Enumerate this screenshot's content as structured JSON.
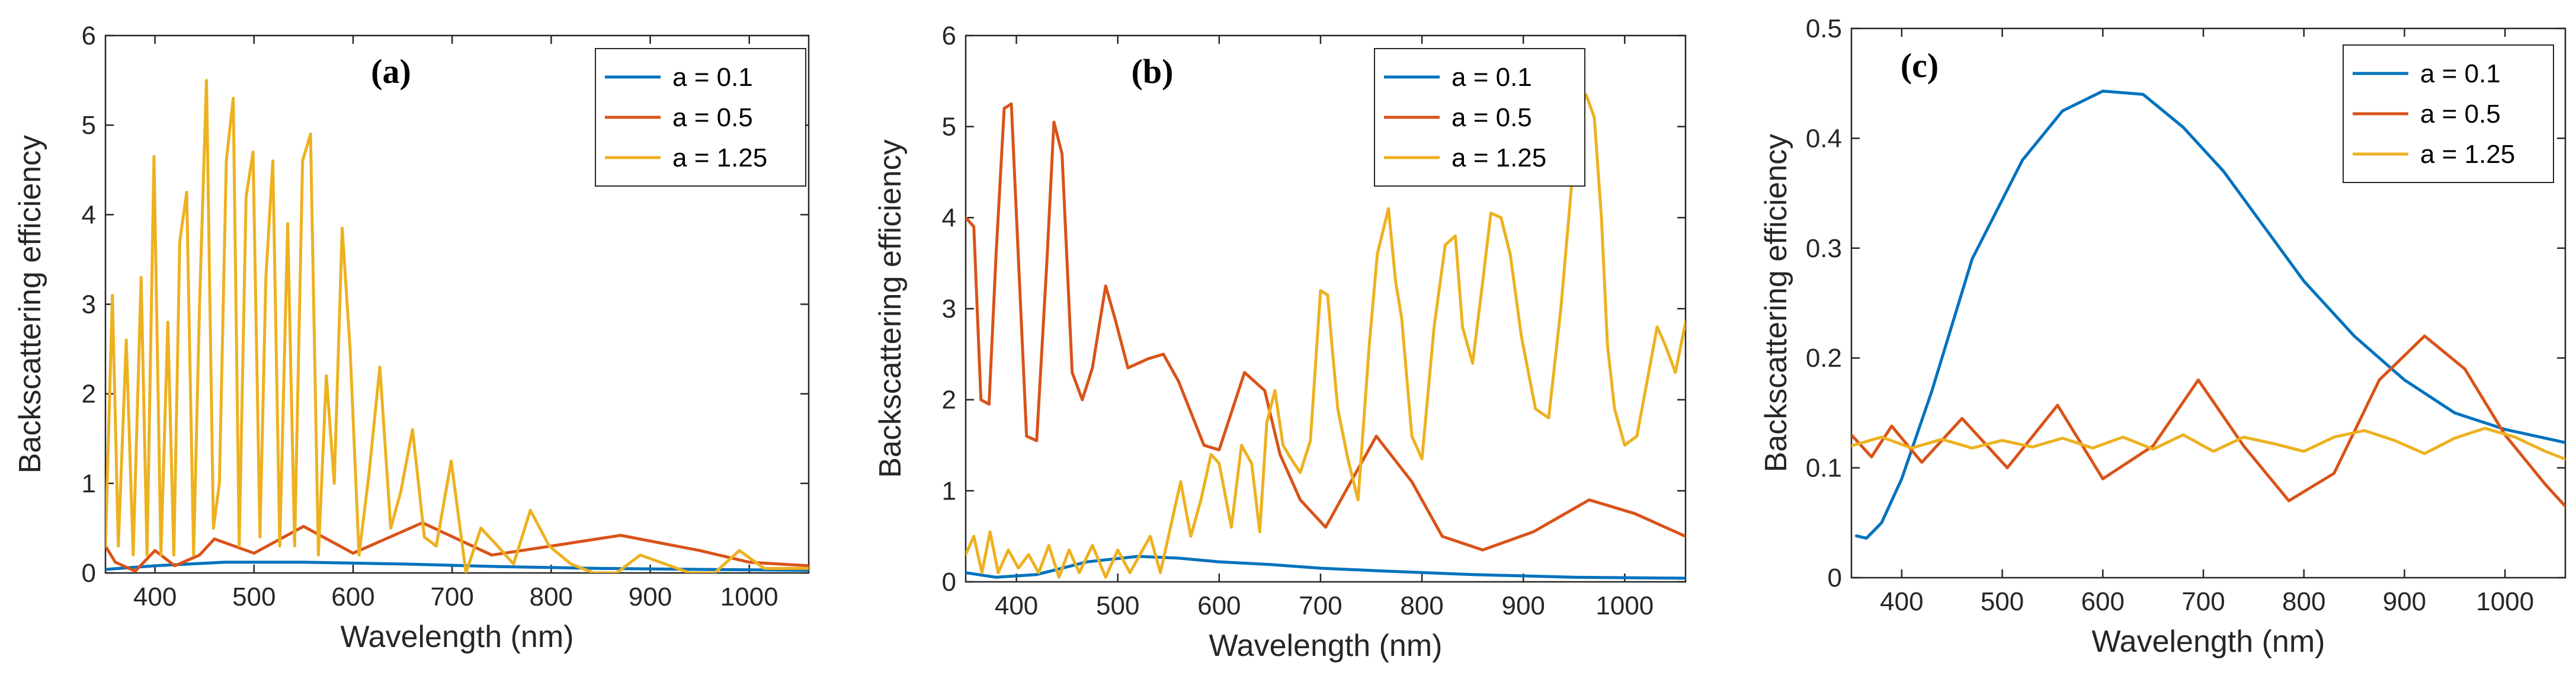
{
  "colors": {
    "a01": "#0072BD",
    "a05": "#D95319",
    "a125": "#EDB120"
  },
  "chart_data": [
    {
      "type": "line",
      "panel": "(a)",
      "xlabel": "Wavelength (nm)",
      "ylabel": "Backscattering efficiency",
      "xlim": [
        350,
        1060
      ],
      "ylim": [
        0,
        6
      ],
      "xticks": [
        400,
        500,
        600,
        700,
        800,
        900,
        1000
      ],
      "yticks": [
        0,
        1,
        2,
        3,
        4,
        5,
        6
      ],
      "legend_position": "top-right",
      "series": [
        {
          "name": "a = 0.1",
          "color_key": "a01",
          "x": [
            350,
            400,
            470,
            550,
            650,
            750,
            850,
            950,
            1060
          ],
          "y": [
            0.04,
            0.08,
            0.12,
            0.12,
            0.1,
            0.07,
            0.05,
            0.04,
            0.03
          ]
        },
        {
          "name": "a = 0.5",
          "color_key": "a05",
          "x": [
            350,
            360,
            380,
            400,
            420,
            445,
            460,
            500,
            550,
            600,
            670,
            740,
            800,
            870,
            950,
            1000,
            1060
          ],
          "y": [
            0.3,
            0.12,
            0.02,
            0.25,
            0.08,
            0.2,
            0.38,
            0.22,
            0.52,
            0.22,
            0.56,
            0.2,
            0.3,
            0.42,
            0.25,
            0.12,
            0.08
          ]
        },
        {
          "name": "a = 1.25",
          "color_key": "a125",
          "x": [
            350,
            357,
            363,
            371,
            378,
            386,
            392,
            399,
            406,
            413,
            419,
            425,
            432,
            439,
            445,
            452,
            459,
            465,
            472,
            479,
            485,
            492,
            499,
            506,
            512,
            519,
            526,
            534,
            541,
            549,
            557,
            565,
            573,
            581,
            589,
            597,
            606,
            616,
            627,
            638,
            648,
            660,
            672,
            684,
            699,
            714,
            729,
            746,
            762,
            779,
            798,
            820,
            843,
            866,
            890,
            915,
            940,
            965,
            990,
            1015,
            1040,
            1060
          ],
          "y": [
            0.3,
            3.1,
            0.3,
            2.6,
            0.2,
            3.3,
            0.2,
            4.65,
            0.2,
            2.8,
            0.2,
            3.7,
            4.25,
            0.2,
            3.0,
            5.5,
            0.5,
            1.0,
            4.6,
            5.3,
            0.3,
            4.2,
            4.7,
            0.4,
            3.3,
            4.6,
            0.3,
            3.9,
            0.3,
            4.6,
            4.9,
            0.2,
            2.2,
            1.0,
            3.85,
            2.5,
            0.2,
            1.1,
            2.3,
            0.5,
            0.9,
            1.6,
            0.4,
            0.3,
            1.25,
            0.0,
            0.5,
            0.3,
            0.1,
            0.7,
            0.3,
            0.1,
            0.0,
            0.0,
            0.2,
            0.1,
            0.0,
            0.0,
            0.25,
            0.05,
            0.05,
            0.05
          ]
        }
      ]
    },
    {
      "type": "line",
      "panel": "(b)",
      "xlabel": "Wavelength (nm)",
      "ylabel": "Backscattering efficiency",
      "xlim": [
        350,
        1060
      ],
      "ylim": [
        0,
        6
      ],
      "xticks": [
        400,
        500,
        600,
        700,
        800,
        900,
        1000
      ],
      "yticks": [
        0,
        1,
        2,
        3,
        4,
        5,
        6
      ],
      "legend_position": "top-right",
      "series": [
        {
          "name": "a = 0.1",
          "color_key": "a01",
          "x": [
            350,
            380,
            420,
            470,
            520,
            560,
            600,
            650,
            700,
            760,
            850,
            950,
            1060
          ],
          "y": [
            0.1,
            0.05,
            0.08,
            0.22,
            0.28,
            0.26,
            0.22,
            0.19,
            0.15,
            0.12,
            0.08,
            0.05,
            0.04
          ]
        },
        {
          "name": "a = 0.5",
          "color_key": "a05",
          "x": [
            350,
            358,
            365,
            373,
            380,
            388,
            395,
            410,
            420,
            430,
            437,
            445,
            455,
            465,
            475,
            488,
            497,
            510,
            530,
            545,
            560,
            585,
            600,
            625,
            645,
            660,
            680,
            705,
            725,
            755,
            790,
            820,
            860,
            910,
            965,
            1010,
            1060
          ],
          "y": [
            4.0,
            3.9,
            2.0,
            1.95,
            3.6,
            5.2,
            5.25,
            1.6,
            1.55,
            3.5,
            5.05,
            4.7,
            2.3,
            2.0,
            2.35,
            3.25,
            2.9,
            2.35,
            2.45,
            2.5,
            2.2,
            1.5,
            1.45,
            2.3,
            2.1,
            1.4,
            0.9,
            0.6,
            1.0,
            1.6,
            1.1,
            0.5,
            0.35,
            0.55,
            0.9,
            0.75,
            0.5
          ]
        },
        {
          "name": "a = 1.25",
          "color_key": "a125",
          "x": [
            350,
            358,
            366,
            374,
            382,
            392,
            402,
            412,
            422,
            432,
            442,
            452,
            462,
            475,
            488,
            500,
            512,
            522,
            532,
            542,
            552,
            562,
            572,
            582,
            592,
            600,
            612,
            622,
            632,
            640,
            647,
            655,
            663,
            671,
            680,
            690,
            700,
            707,
            712,
            717,
            727,
            737,
            748,
            756,
            767,
            774,
            780,
            790,
            800,
            812,
            823,
            833,
            840,
            850,
            860,
            868,
            878,
            887,
            898,
            912,
            925,
            937,
            948,
            957,
            962,
            970,
            977,
            983,
            990,
            1000,
            1012,
            1022,
            1032,
            1040,
            1050,
            1060
          ],
          "y": [
            0.3,
            0.5,
            0.1,
            0.55,
            0.1,
            0.35,
            0.15,
            0.3,
            0.1,
            0.4,
            0.05,
            0.35,
            0.1,
            0.4,
            0.05,
            0.35,
            0.1,
            0.3,
            0.5,
            0.1,
            0.6,
            1.1,
            0.5,
            0.9,
            1.4,
            1.3,
            0.6,
            1.5,
            1.3,
            0.55,
            1.75,
            2.1,
            1.5,
            1.35,
            1.2,
            1.55,
            3.2,
            3.15,
            2.5,
            1.9,
            1.35,
            0.9,
            2.6,
            3.6,
            4.1,
            3.3,
            2.9,
            1.6,
            1.35,
            2.8,
            3.7,
            3.8,
            2.8,
            2.4,
            3.3,
            4.05,
            4.0,
            3.6,
            2.7,
            1.9,
            1.8,
            3.0,
            4.4,
            5.2,
            5.35,
            5.1,
            4.0,
            2.6,
            1.9,
            1.5,
            1.6,
            2.2,
            2.8,
            2.6,
            2.3,
            2.85
          ]
        }
      ]
    },
    {
      "type": "line",
      "panel": "(c)",
      "xlabel": "Wavelength (nm)",
      "ylabel": "Backscattering efficiency",
      "xlim": [
        350,
        1060
      ],
      "ylim": [
        0,
        0.5
      ],
      "xticks": [
        400,
        500,
        600,
        700,
        800,
        900,
        1000
      ],
      "yticks": [
        0,
        0.1,
        0.2,
        0.3,
        0.4,
        0.5
      ],
      "legend_position": "top-right",
      "series": [
        {
          "name": "a = 0.1",
          "color_key": "a01",
          "x": [
            355,
            365,
            380,
            400,
            430,
            470,
            520,
            560,
            600,
            640,
            680,
            720,
            760,
            800,
            850,
            900,
            950,
            1000,
            1060
          ],
          "y": [
            0.038,
            0.036,
            0.05,
            0.09,
            0.17,
            0.29,
            0.38,
            0.425,
            0.443,
            0.44,
            0.41,
            0.37,
            0.32,
            0.27,
            0.22,
            0.18,
            0.15,
            0.135,
            0.123
          ]
        },
        {
          "name": "a = 0.5",
          "color_key": "a05",
          "x": [
            350,
            370,
            390,
            420,
            460,
            505,
            555,
            600,
            650,
            695,
            740,
            785,
            830,
            875,
            920,
            960,
            1000,
            1040,
            1060
          ],
          "y": [
            0.13,
            0.11,
            0.138,
            0.105,
            0.145,
            0.1,
            0.157,
            0.09,
            0.12,
            0.18,
            0.12,
            0.07,
            0.095,
            0.18,
            0.22,
            0.19,
            0.13,
            0.085,
            0.065
          ]
        },
        {
          "name": "a = 1.25",
          "color_key": "a125",
          "x": [
            350,
            380,
            410,
            440,
            470,
            500,
            530,
            560,
            590,
            620,
            650,
            680,
            710,
            740,
            770,
            800,
            830,
            860,
            890,
            920,
            950,
            980,
            1010,
            1040,
            1060
          ],
          "y": [
            0.12,
            0.128,
            0.118,
            0.126,
            0.118,
            0.125,
            0.119,
            0.127,
            0.118,
            0.128,
            0.117,
            0.13,
            0.115,
            0.128,
            0.122,
            0.115,
            0.128,
            0.134,
            0.125,
            0.113,
            0.127,
            0.136,
            0.128,
            0.115,
            0.108
          ]
        }
      ]
    }
  ]
}
